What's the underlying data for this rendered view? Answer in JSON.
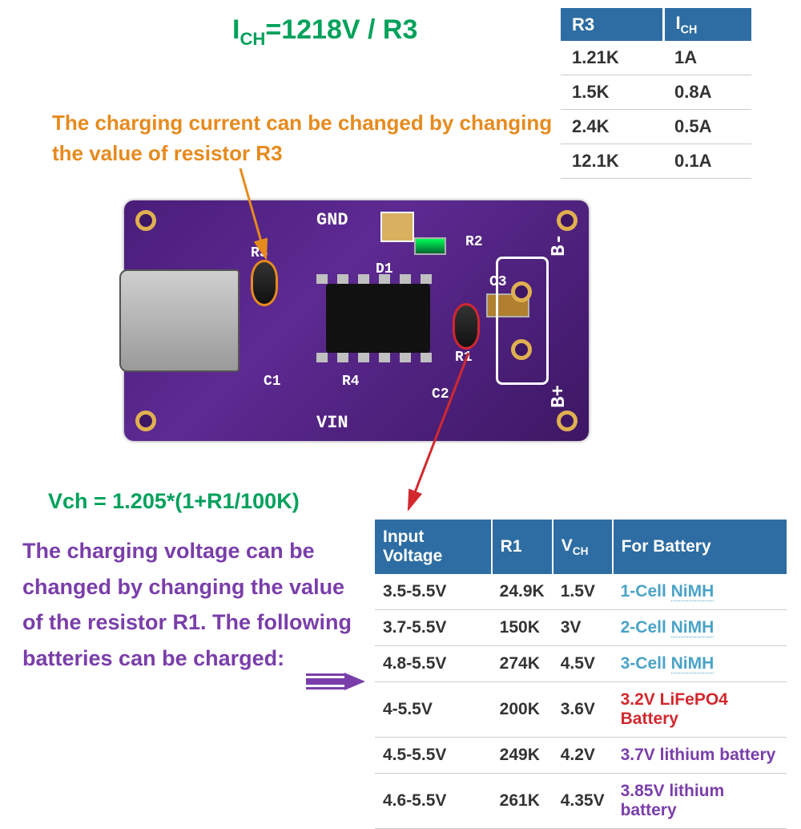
{
  "colors": {
    "green": "#00a15b",
    "orange": "#e78a1e",
    "purple": "#7a3eaa",
    "table_header_bg": "#2d6da3",
    "table_header_fg": "#ffffff",
    "pcb_bg": "#4a1d7a",
    "batt_blue": "#4aa3c7",
    "batt_red": "#d2282e"
  },
  "formulas": {
    "ich_prefix": "I",
    "ich_sub": "CH",
    "ich_rhs": "=1218V / R3",
    "vch": "Vch = 1.205*(1+R1/100K)"
  },
  "notes": {
    "orange": "The charging current can be changed by changing the value of resistor R3",
    "purple": "The charging voltage can be changed by changing the value of the resistor R1. The following batteries can be charged:"
  },
  "r3_table": {
    "headers": {
      "c1": "R3",
      "c2_prefix": "I",
      "c2_sub": "CH"
    },
    "rows": [
      {
        "r3": "1.21K",
        "ich": "1A"
      },
      {
        "r3": "1.5K",
        "ich": "0.8A"
      },
      {
        "r3": "2.4K",
        "ich": "0.5A"
      },
      {
        "r3": "12.1K",
        "ich": "0.1A"
      }
    ]
  },
  "v_table": {
    "headers": {
      "c1": "Input Voltage",
      "c2": "R1",
      "c3_prefix": "V",
      "c3_sub": "CH",
      "c4": "For Battery"
    },
    "rows": [
      {
        "vin": "3.5-5.5V",
        "r1": "24.9K",
        "vch": "1.5V",
        "batt": "1-Cell NiMH",
        "cls": "batt-blue",
        "dotted": true
      },
      {
        "vin": "3.7-5.5V",
        "r1": "150K",
        "vch": "3V",
        "batt": "2-Cell NiMH",
        "cls": "batt-blue",
        "dotted": true
      },
      {
        "vin": "4.8-5.5V",
        "r1": "274K",
        "vch": "4.5V",
        "batt": "3-Cell NiMH",
        "cls": "batt-blue",
        "dotted": true
      },
      {
        "vin": "4-5.5V",
        "r1": "200K",
        "vch": "3.6V",
        "batt": "3.2V LiFePO4 Battery",
        "cls": "batt-red",
        "dotted": false
      },
      {
        "vin": "4.5-5.5V",
        "r1": "249K",
        "vch": "4.2V",
        "batt": "3.7V lithium battery",
        "cls": "batt-purple",
        "dotted": false
      },
      {
        "vin": "4.6-5.5V",
        "r1": "261K",
        "vch": "4.35V",
        "batt": "3.85V lithium battery",
        "cls": "batt-purple",
        "dotted": false
      }
    ]
  },
  "pcb_labels": {
    "gnd": "GND",
    "vin": "VIN",
    "r1": "R1",
    "r2": "R2",
    "r3": "R3",
    "r4": "R4",
    "c1": "C1",
    "c2": "C2",
    "c3": "C3",
    "d1": "D1",
    "bminus": "B-",
    "bplus": "B+"
  }
}
